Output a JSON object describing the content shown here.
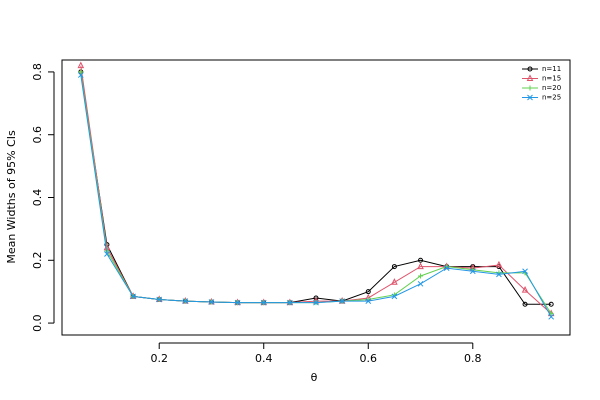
{
  "chart_data": {
    "type": "line",
    "x_label": "θ",
    "y_label": "Mean Widths of 95% CIs",
    "x": [
      0.05,
      0.1,
      0.15,
      0.2,
      0.25,
      0.3,
      0.35,
      0.4,
      0.45,
      0.5,
      0.55,
      0.6,
      0.65,
      0.7,
      0.75,
      0.8,
      0.85,
      0.9,
      0.95
    ],
    "series": [
      {
        "name": "n=11",
        "color": "#000000",
        "marker": "circle",
        "values": [
          0.8,
          0.25,
          0.085,
          0.075,
          0.07,
          0.067,
          0.065,
          0.065,
          0.065,
          0.08,
          0.07,
          0.1,
          0.18,
          0.2,
          0.18,
          0.18,
          0.18,
          0.06,
          0.06
        ]
      },
      {
        "name": "n=15",
        "color": "#DF536B",
        "marker": "triangle",
        "values": [
          0.82,
          0.24,
          0.085,
          0.075,
          0.07,
          0.067,
          0.065,
          0.065,
          0.065,
          0.07,
          0.07,
          0.08,
          0.13,
          0.18,
          0.18,
          0.175,
          0.185,
          0.105,
          0.03
        ]
      },
      {
        "name": "n=20",
        "color": "#61D04F",
        "marker": "plus",
        "values": [
          0.8,
          0.23,
          0.085,
          0.075,
          0.07,
          0.067,
          0.065,
          0.065,
          0.065,
          0.065,
          0.07,
          0.075,
          0.09,
          0.15,
          0.18,
          0.17,
          0.16,
          0.16,
          0.03
        ]
      },
      {
        "name": "n=25",
        "color": "#2297E6",
        "marker": "cross",
        "values": [
          0.79,
          0.22,
          0.085,
          0.075,
          0.07,
          0.067,
          0.065,
          0.065,
          0.065,
          0.065,
          0.07,
          0.07,
          0.085,
          0.125,
          0.175,
          0.165,
          0.155,
          0.165,
          0.02
        ]
      }
    ],
    "xlim": [
      0.014,
      0.986
    ],
    "ylim": [
      -0.038,
      0.838
    ],
    "xticks": [
      0.2,
      0.4,
      0.6,
      0.8
    ],
    "yticks": [
      {
        "value": 0,
        "label": "0.0"
      },
      0.2,
      0.4,
      0.6,
      0.8
    ],
    "legend": "top-right",
    "grid": false
  }
}
